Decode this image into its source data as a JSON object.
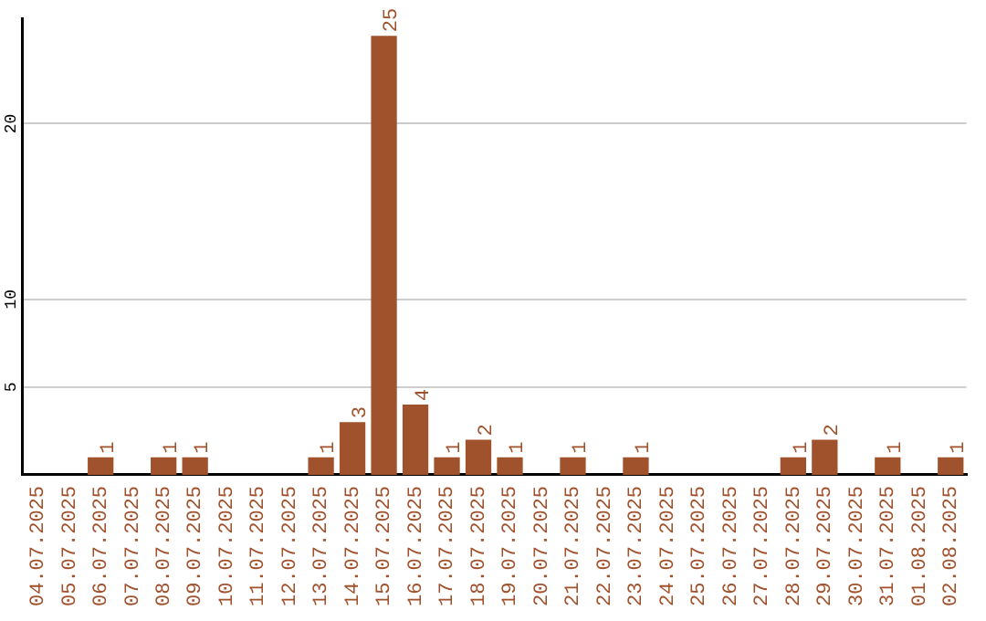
{
  "chart_data": {
    "type": "bar",
    "categories": [
      "04.07.2025",
      "05.07.2025",
      "06.07.2025",
      "07.07.2025",
      "08.07.2025",
      "09.07.2025",
      "10.07.2025",
      "11.07.2025",
      "12.07.2025",
      "13.07.2025",
      "14.07.2025",
      "15.07.2025",
      "16.07.2025",
      "17.07.2025",
      "18.07.2025",
      "19.07.2025",
      "20.07.2025",
      "21.07.2025",
      "22.07.2025",
      "23.07.2025",
      "24.07.2025",
      "25.07.2025",
      "26.07.2025",
      "27.07.2025",
      "28.07.2025",
      "29.07.2025",
      "30.07.2025",
      "31.07.2025",
      "01.08.2025",
      "02.08.2025"
    ],
    "values": [
      0,
      0,
      1,
      0,
      1,
      1,
      0,
      0,
      0,
      1,
      3,
      25,
      4,
      1,
      2,
      1,
      0,
      1,
      0,
      1,
      0,
      0,
      0,
      0,
      1,
      2,
      0,
      1,
      0,
      1
    ],
    "value_labels": [
      null,
      null,
      "1",
      null,
      "1",
      "1",
      null,
      null,
      null,
      "1",
      "3",
      "25",
      "4",
      "1",
      "2",
      "1",
      null,
      "1",
      null,
      "1",
      null,
      null,
      null,
      null,
      "1",
      "2",
      null,
      "1",
      null,
      "1"
    ],
    "color": "#a0522d",
    "ylim": [
      0,
      26
    ],
    "yticks": [
      5,
      10,
      20
    ],
    "grid": "y",
    "legend": false
  }
}
